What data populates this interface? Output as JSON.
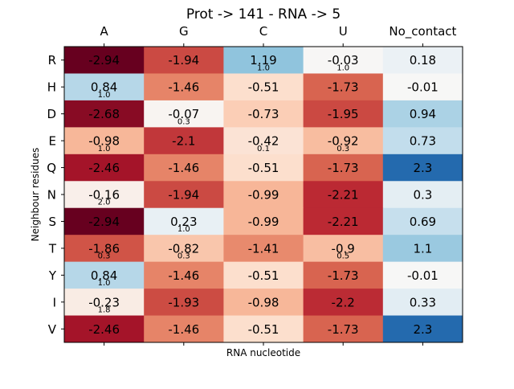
{
  "chart_data": {
    "type": "heatmap",
    "title": "Prot -> 141 - RNA -> 5",
    "xlabel": "RNA nucleotide",
    "ylabel": "Neighbour residues",
    "columns": [
      "A",
      "G",
      "C",
      "U",
      "No_contact"
    ],
    "rows": [
      "R",
      "H",
      "D",
      "E",
      "Q",
      "N",
      "S",
      "T",
      "Y",
      "I",
      "V"
    ],
    "values": [
      [
        -2.94,
        -1.94,
        1.19,
        -0.03,
        0.18
      ],
      [
        0.84,
        -1.46,
        -0.51,
        -1.73,
        -0.01
      ],
      [
        -2.68,
        -0.07,
        -0.73,
        -1.95,
        0.94
      ],
      [
        -0.98,
        -2.1,
        -0.42,
        -0.92,
        0.73
      ],
      [
        -2.46,
        -1.46,
        -0.51,
        -1.73,
        2.3
      ],
      [
        -0.16,
        -1.94,
        -0.99,
        -2.21,
        0.3
      ],
      [
        -2.94,
        0.23,
        -0.99,
        -2.21,
        0.69
      ],
      [
        -1.86,
        -0.82,
        -1.41,
        -0.9,
        1.1
      ],
      [
        0.84,
        -1.46,
        -0.51,
        -1.73,
        -0.01
      ],
      [
        -0.23,
        -1.93,
        -0.98,
        -2.2,
        0.33
      ],
      [
        -2.46,
        -1.46,
        -0.51,
        -1.73,
        2.3
      ]
    ],
    "annotations": [
      {
        "row": 0,
        "col": 2,
        "text": "1.0"
      },
      {
        "row": 0,
        "col": 3,
        "text": "1.0"
      },
      {
        "row": 1,
        "col": 0,
        "text": "1.0"
      },
      {
        "row": 2,
        "col": 1,
        "text": "0.3"
      },
      {
        "row": 3,
        "col": 0,
        "text": "1.0"
      },
      {
        "row": 3,
        "col": 2,
        "text": "0.1"
      },
      {
        "row": 3,
        "col": 3,
        "text": "0.3"
      },
      {
        "row": 5,
        "col": 0,
        "text": "2.0"
      },
      {
        "row": 6,
        "col": 1,
        "text": "1.0"
      },
      {
        "row": 7,
        "col": 0,
        "text": "0.3"
      },
      {
        "row": 7,
        "col": 1,
        "text": "0.3"
      },
      {
        "row": 7,
        "col": 3,
        "text": "0.5"
      },
      {
        "row": 8,
        "col": 0,
        "text": "1.0"
      },
      {
        "row": 9,
        "col": 0,
        "text": "1.8"
      }
    ],
    "colormap": "RdBu",
    "vlim": [
      -2.94,
      2.94
    ],
    "x_ticks_position": "top",
    "grid": false
  }
}
